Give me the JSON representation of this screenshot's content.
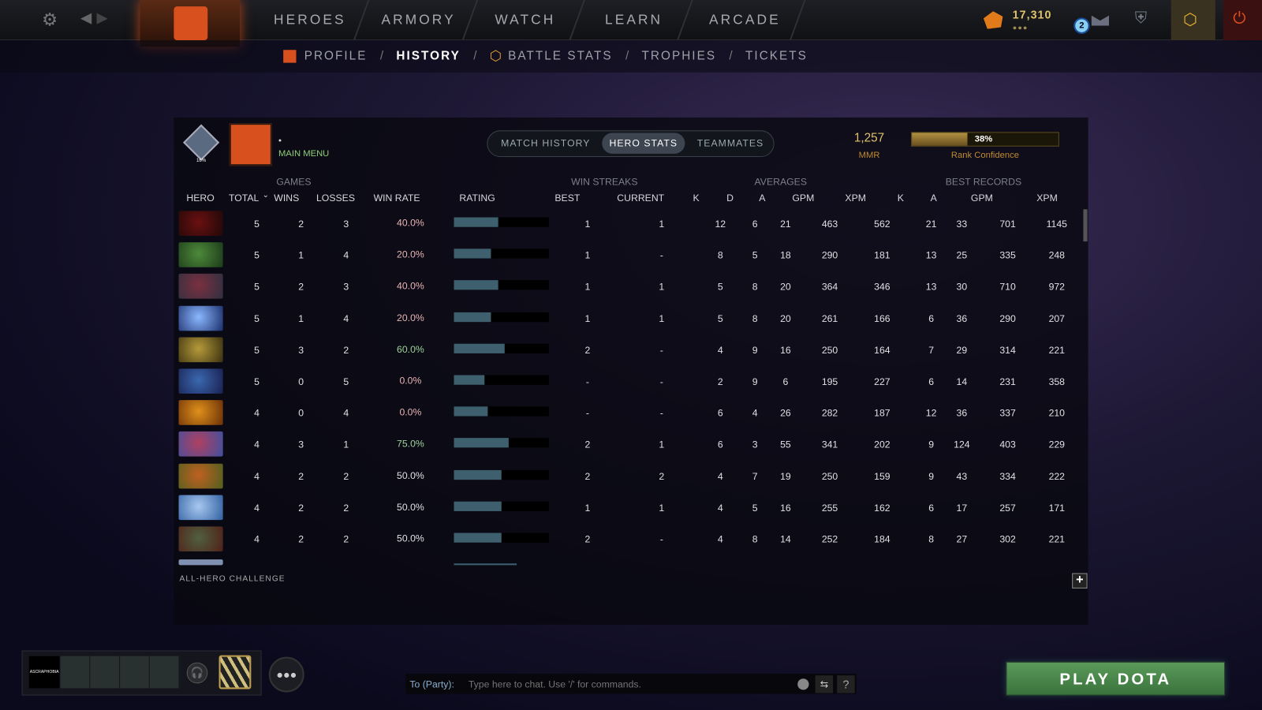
{
  "topnav": {
    "items": [
      "HEROES",
      "ARMORY",
      "WATCH",
      "LEARN",
      "ARCADE"
    ],
    "shards": "17,310",
    "notification_count": "2"
  },
  "subnav": {
    "items": [
      "PROFILE",
      "HISTORY",
      "BATTLE STATS",
      "TROPHIES",
      "TICKETS"
    ],
    "active": "HISTORY"
  },
  "profile": {
    "name": "•",
    "status": "MAIN MENU",
    "rank_medal_pct": "16%"
  },
  "tabs": {
    "items": [
      "MATCH HISTORY",
      "HERO STATS",
      "TEAMMATES"
    ],
    "active": "HERO STATS"
  },
  "mmr": {
    "value": "1,257",
    "label": "MMR",
    "confidence": "38%",
    "confidence_value": 0.38,
    "confidence_label": "Rank Confidence"
  },
  "groups": {
    "games": "GAMES",
    "win_streaks": "WIN STREAKS",
    "averages": "AVERAGES",
    "best_records": "BEST RECORDS"
  },
  "columns": [
    "HERO",
    "TOTAL",
    "WINS",
    "LOSSES",
    "WIN RATE",
    "RATING",
    "BEST",
    "CURRENT",
    "K",
    "D",
    "A",
    "GPM",
    "XPM",
    "K",
    "A",
    "GPM",
    "XPM"
  ],
  "sort_indicator": "⌄",
  "colors": {
    "win_good": "#9ed39a",
    "win_bad": "#e8b4b4",
    "win_even": "#e0e0e6",
    "rating_fill": "#3e5f6d",
    "play_button": "#4d8a4f",
    "accent_gold": "#e0c36a"
  },
  "rows": [
    {
      "portrait": [
        "#6a1010",
        "#200808"
      ],
      "total": "5",
      "wins": "2",
      "losses": "3",
      "win_rate": "40.0%",
      "rating": 0.47,
      "best": "1",
      "current": "1",
      "k": "12",
      "d": "6",
      "a": "21",
      "gpm": "463",
      "xpm": "562",
      "bk": "21",
      "ba": "33",
      "bgpm": "701",
      "bxpm": "1145"
    },
    {
      "portrait": [
        "#4d8a3a",
        "#1d3a1a"
      ],
      "total": "5",
      "wins": "1",
      "losses": "4",
      "win_rate": "20.0%",
      "rating": 0.39,
      "best": "1",
      "current": "-",
      "k": "8",
      "d": "5",
      "a": "18",
      "gpm": "290",
      "xpm": "181",
      "bk": "13",
      "ba": "25",
      "bgpm": "335",
      "bxpm": "248"
    },
    {
      "portrait": [
        "#7a3040",
        "#303040"
      ],
      "total": "5",
      "wins": "2",
      "losses": "3",
      "win_rate": "40.0%",
      "rating": 0.47,
      "best": "1",
      "current": "1",
      "k": "5",
      "d": "8",
      "a": "20",
      "gpm": "364",
      "xpm": "346",
      "bk": "13",
      "ba": "30",
      "bgpm": "710",
      "bxpm": "972"
    },
    {
      "portrait": [
        "#8ab8ff",
        "#1b2e6a"
      ],
      "total": "5",
      "wins": "1",
      "losses": "4",
      "win_rate": "20.0%",
      "rating": 0.39,
      "best": "1",
      "current": "1",
      "k": "5",
      "d": "8",
      "a": "20",
      "gpm": "261",
      "xpm": "166",
      "bk": "6",
      "ba": "36",
      "bgpm": "290",
      "bxpm": "207"
    },
    {
      "portrait": [
        "#b59a3a",
        "#3a3010"
      ],
      "total": "5",
      "wins": "3",
      "losses": "2",
      "win_rate": "60.0%",
      "rating": 0.53,
      "best": "2",
      "current": "-",
      "k": "4",
      "d": "9",
      "a": "16",
      "gpm": "250",
      "xpm": "164",
      "bk": "7",
      "ba": "29",
      "bgpm": "314",
      "bxpm": "221"
    },
    {
      "portrait": [
        "#3a68b0",
        "#1a2050"
      ],
      "total": "5",
      "wins": "0",
      "losses": "5",
      "win_rate": "0.0%",
      "rating": 0.32,
      "best": "-",
      "current": "-",
      "k": "2",
      "d": "9",
      "a": "6",
      "gpm": "195",
      "xpm": "227",
      "bk": "6",
      "ba": "14",
      "bgpm": "231",
      "bxpm": "358"
    },
    {
      "portrait": [
        "#e0901a",
        "#6a3008"
      ],
      "total": "4",
      "wins": "0",
      "losses": "4",
      "win_rate": "0.0%",
      "rating": 0.36,
      "best": "-",
      "current": "-",
      "k": "6",
      "d": "4",
      "a": "26",
      "gpm": "282",
      "xpm": "187",
      "bk": "12",
      "ba": "36",
      "bgpm": "337",
      "bxpm": "210"
    },
    {
      "portrait": [
        "#b04060",
        "#4050a0"
      ],
      "total": "4",
      "wins": "3",
      "losses": "1",
      "win_rate": "75.0%",
      "rating": 0.58,
      "best": "2",
      "current": "1",
      "k": "6",
      "d": "3",
      "a": "55",
      "gpm": "341",
      "xpm": "202",
      "bk": "9",
      "ba": "124",
      "bgpm": "403",
      "bxpm": "229"
    },
    {
      "portrait": [
        "#c06020",
        "#506020"
      ],
      "total": "4",
      "wins": "2",
      "losses": "2",
      "win_rate": "50.0%",
      "rating": 0.5,
      "best": "2",
      "current": "2",
      "k": "4",
      "d": "7",
      "a": "19",
      "gpm": "250",
      "xpm": "159",
      "bk": "9",
      "ba": "43",
      "bgpm": "334",
      "bxpm": "222"
    },
    {
      "portrait": [
        "#a8c8f0",
        "#3060a0"
      ],
      "total": "4",
      "wins": "2",
      "losses": "2",
      "win_rate": "50.0%",
      "rating": 0.5,
      "best": "1",
      "current": "1",
      "k": "4",
      "d": "5",
      "a": "16",
      "gpm": "255",
      "xpm": "162",
      "bk": "6",
      "ba": "17",
      "bgpm": "257",
      "bxpm": "171"
    },
    {
      "portrait": [
        "#506040",
        "#502018"
      ],
      "total": "4",
      "wins": "2",
      "losses": "2",
      "win_rate": "50.0%",
      "rating": 0.5,
      "best": "2",
      "current": "-",
      "k": "4",
      "d": "8",
      "a": "14",
      "gpm": "252",
      "xpm": "184",
      "bk": "8",
      "ba": "27",
      "bgpm": "302",
      "bxpm": "221"
    }
  ],
  "footer": {
    "challenge": "ALL-HERO CHALLENGE",
    "add": "+"
  },
  "party": {
    "player_tag": "ASCRAPHOBIA"
  },
  "chat": {
    "prefix": "To (Party):",
    "placeholder": "Type here to chat. Use '/' for commands.",
    "help": "?"
  },
  "play_button": "PLAY DOTA"
}
